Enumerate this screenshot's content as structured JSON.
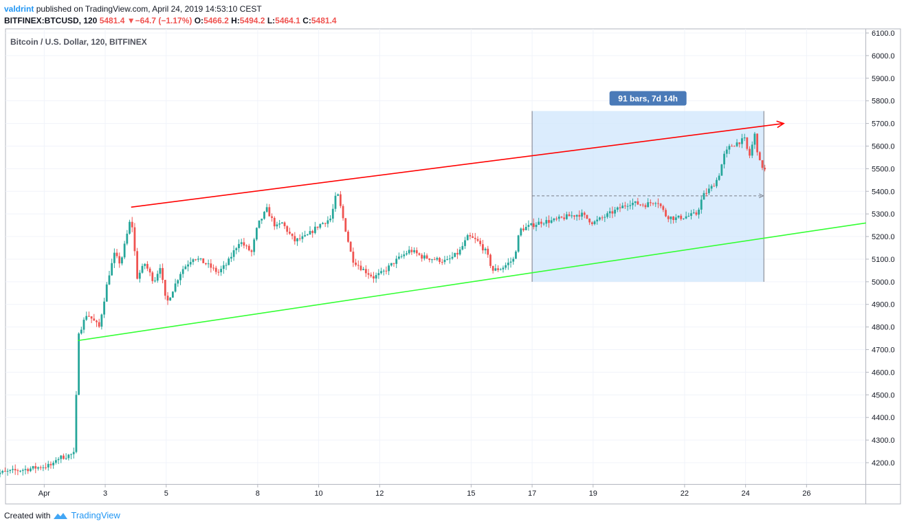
{
  "header": {
    "user": "valdrint",
    "published": "published on TradingView.com, April 24, 2019 14:53:10 CEST"
  },
  "ohlc": {
    "symbol": "BITFINEX:BTCUSD, 120",
    "price": "5481.4",
    "change": "−64.7 (−1.17%)",
    "o_label": "O:",
    "o": "5466.2",
    "h_label": "H:",
    "h": "5494.2",
    "l_label": "L:",
    "l": "5464.1",
    "c_label": "C:",
    "c": "5481.4"
  },
  "footer": {
    "created": "Created with",
    "brand": "TradingView"
  },
  "colors": {
    "up": "#26a69a",
    "down": "#ef5350",
    "resistance": "#ff0000",
    "support": "#33ff33",
    "range_fill": "#cfe6fc",
    "badge": "#4a7ab8"
  },
  "chart_data": {
    "type": "candlestick",
    "title": "Bitcoin / U.S. Dollar, 120, BITFINEX",
    "ylim": [
      4060,
      6120
    ],
    "y_ticks": [
      "6100.0",
      "6000.0",
      "5900.0",
      "5800.0",
      "5700.0",
      "5600.0",
      "5500.0",
      "5400.0",
      "5300.0",
      "5200.0",
      "5100.0",
      "5000.0",
      "4900.0",
      "4800.0",
      "4700.0",
      "4600.0",
      "4500.0",
      "4400.0",
      "4300.0",
      "4200.0"
    ],
    "x_ticks": [
      {
        "label": "Apr",
        "day": 1
      },
      {
        "label": "3",
        "day": 3
      },
      {
        "label": "5",
        "day": 5
      },
      {
        "label": "8",
        "day": 8
      },
      {
        "label": "10",
        "day": 10
      },
      {
        "label": "12",
        "day": 12
      },
      {
        "label": "15",
        "day": 15
      },
      {
        "label": "17",
        "day": 17
      },
      {
        "label": "19",
        "day": 19
      },
      {
        "label": "22",
        "day": 22
      },
      {
        "label": "24",
        "day": 24
      },
      {
        "label": "26",
        "day": 26
      }
    ],
    "x_range_days": [
      0.0,
      27.9
    ],
    "path": [
      [
        -0.7,
        4150
      ],
      [
        0.6,
        4175
      ],
      [
        1.3,
        4190
      ],
      [
        1.15,
        4200
      ],
      [
        1.2,
        4210
      ],
      [
        2.0,
        4240
      ],
      [
        2.1,
        4760
      ],
      [
        2.4,
        4860
      ],
      [
        2.8,
        4800
      ],
      [
        3.1,
        5020
      ],
      [
        3.3,
        5120
      ],
      [
        3.5,
        5080
      ],
      [
        3.85,
        5290
      ],
      [
        4.05,
        5020
      ],
      [
        4.3,
        5080
      ],
      [
        4.6,
        5000
      ],
      [
        4.8,
        5070
      ],
      [
        5.0,
        4900
      ],
      [
        5.2,
        4960
      ],
      [
        5.5,
        5050
      ],
      [
        5.9,
        5110
      ],
      [
        6.3,
        5080
      ],
      [
        6.7,
        5040
      ],
      [
        7.0,
        5080
      ],
      [
        7.4,
        5180
      ],
      [
        7.8,
        5130
      ],
      [
        8.0,
        5250
      ],
      [
        8.3,
        5320
      ],
      [
        8.6,
        5240
      ],
      [
        8.8,
        5260
      ],
      [
        9.2,
        5180
      ],
      [
        9.6,
        5200
      ],
      [
        10.0,
        5250
      ],
      [
        10.4,
        5280
      ],
      [
        10.6,
        5400
      ],
      [
        10.8,
        5280
      ],
      [
        11.1,
        5100
      ],
      [
        11.4,
        5060
      ],
      [
        11.8,
        5020
      ],
      [
        12.1,
        5040
      ],
      [
        12.5,
        5090
      ],
      [
        13.0,
        5140
      ],
      [
        13.4,
        5110
      ],
      [
        13.8,
        5100
      ],
      [
        14.2,
        5090
      ],
      [
        14.6,
        5130
      ],
      [
        14.9,
        5200
      ],
      [
        15.2,
        5180
      ],
      [
        15.5,
        5130
      ],
      [
        15.7,
        5050
      ],
      [
        16.0,
        5060
      ],
      [
        16.4,
        5100
      ],
      [
        16.6,
        5230
      ],
      [
        16.9,
        5245
      ],
      [
        17.3,
        5265
      ],
      [
        17.7,
        5270
      ],
      [
        18.2,
        5290
      ],
      [
        18.6,
        5300
      ],
      [
        19.0,
        5260
      ],
      [
        19.4,
        5290
      ],
      [
        19.8,
        5320
      ],
      [
        20.2,
        5350
      ],
      [
        20.7,
        5340
      ],
      [
        21.1,
        5360
      ],
      [
        21.4,
        5290
      ],
      [
        21.7,
        5280
      ],
      [
        22.1,
        5290
      ],
      [
        22.4,
        5300
      ],
      [
        22.6,
        5380
      ],
      [
        22.9,
        5420
      ],
      [
        23.1,
        5460
      ],
      [
        23.3,
        5560
      ],
      [
        23.5,
        5600
      ],
      [
        23.8,
        5620
      ],
      [
        24.0,
        5630
      ],
      [
        24.1,
        5540
      ],
      [
        24.3,
        5650
      ],
      [
        24.45,
        5530
      ],
      [
        24.7,
        5480
      ]
    ],
    "annotations": {
      "resistance": {
        "from": [
          3.85,
          5330
        ],
        "to": [
          25.25,
          5700
        ],
        "color": "#ff0000"
      },
      "support": {
        "from": [
          2.1,
          4740
        ],
        "to": [
          27.95,
          5260
        ],
        "color": "#33ff33"
      },
      "date_range": {
        "start_day": 17.0,
        "end_day": 24.6,
        "low": 5000,
        "high": 5755,
        "mid": 5380,
        "label": "91 bars, 7d 14h"
      }
    }
  }
}
